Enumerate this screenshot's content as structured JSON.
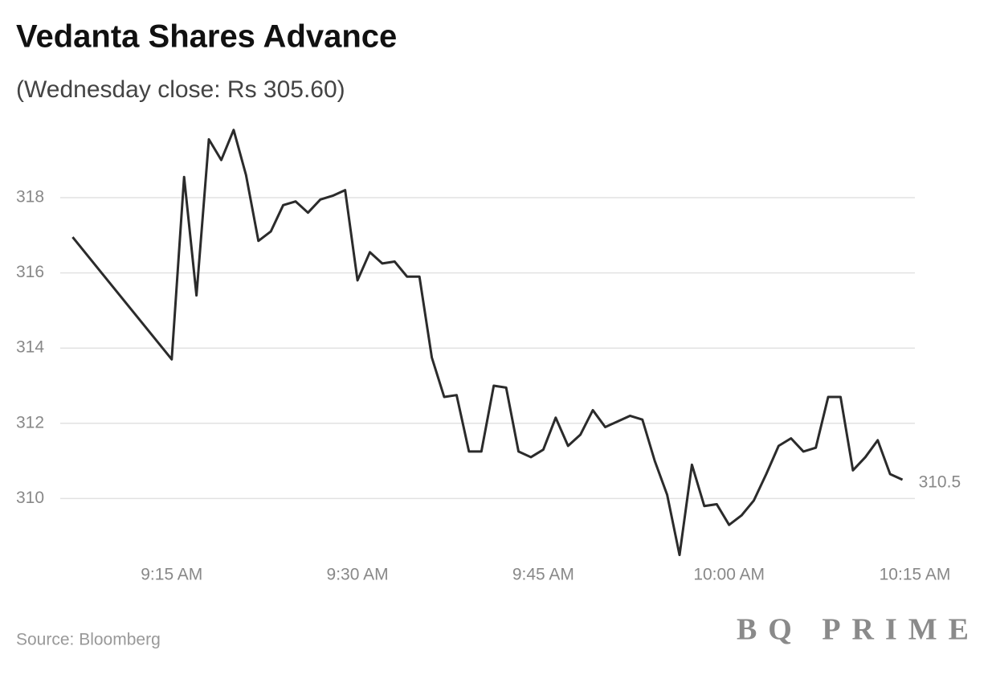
{
  "chart_data": {
    "type": "line",
    "title": "Vedanta Shares Advance",
    "subtitle": "(Wednesday close: Rs 305.60)",
    "source": "Source: Bloomberg",
    "brand": "BQ PRIME",
    "x": [
      547,
      555,
      556,
      557,
      558,
      559,
      560,
      561,
      562,
      563,
      564,
      565,
      566,
      567,
      568,
      569,
      570,
      571,
      572,
      573,
      574,
      575,
      576,
      577,
      578,
      579,
      580,
      581,
      582,
      583,
      584,
      585,
      586,
      587,
      588,
      589,
      590,
      591,
      592,
      593,
      594,
      595,
      596,
      597,
      598,
      599,
      600,
      601,
      602,
      603,
      604,
      605,
      606,
      607,
      608,
      609,
      610,
      611,
      612,
      613,
      614
    ],
    "series": [
      {
        "name": "Vedanta",
        "color": "#2b2b2b",
        "values": [
          316.95,
          313.7,
          318.55,
          315.4,
          319.55,
          319.0,
          319.8,
          318.6,
          316.85,
          317.1,
          317.8,
          317.9,
          317.6,
          317.95,
          318.05,
          318.2,
          315.8,
          316.55,
          316.25,
          316.3,
          315.9,
          315.9,
          313.75,
          312.7,
          312.75,
          311.25,
          311.25,
          313.0,
          312.95,
          311.25,
          311.1,
          311.3,
          312.15,
          311.4,
          311.7,
          312.35,
          311.9,
          312.05,
          312.2,
          312.1,
          311.0,
          310.1,
          308.5,
          310.9,
          309.8,
          309.85,
          309.3,
          309.55,
          309.95,
          310.65,
          311.4,
          311.6,
          311.25,
          311.35,
          312.7,
          312.7,
          310.75,
          311.1,
          311.55,
          310.65,
          310.5
        ],
        "end_label": "310.5"
      }
    ],
    "xlim": [
      546,
      615
    ],
    "xticks": [
      {
        "value": 555,
        "label": "9:15 AM"
      },
      {
        "value": 570,
        "label": "9:30 AM"
      },
      {
        "value": 585,
        "label": "9:45 AM"
      },
      {
        "value": 600,
        "label": "10:00 AM"
      },
      {
        "value": 615,
        "label": "10:15 AM"
      }
    ],
    "ylim": [
      308.3,
      320.05
    ],
    "yticks": [
      310,
      312,
      314,
      316,
      318
    ],
    "grid": true
  }
}
